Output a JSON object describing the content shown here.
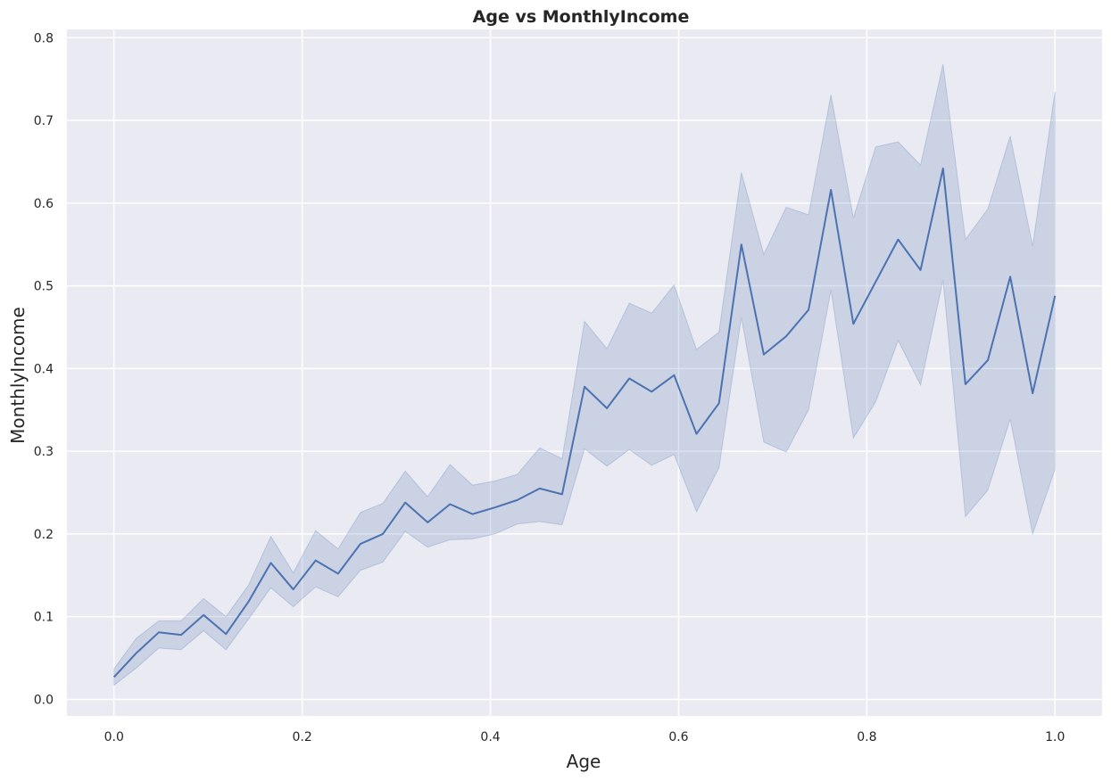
{
  "chart_data": {
    "type": "line",
    "title": "Age vs MonthlyIncome",
    "xlabel": "Age",
    "ylabel": "MonthlyIncome",
    "xlim": [
      -0.05,
      1.05
    ],
    "ylim": [
      -0.02,
      0.81
    ],
    "xticks": [
      "0.0",
      "0.2",
      "0.4",
      "0.6",
      "0.8",
      "1.0"
    ],
    "yticks": [
      "0.0",
      "0.1",
      "0.2",
      "0.3",
      "0.4",
      "0.5",
      "0.6",
      "0.7",
      "0.8"
    ],
    "grid": true,
    "colors": {
      "background": "#eaeaf2",
      "line": "#4c72b0",
      "band": "#4c72b0"
    },
    "series": [
      {
        "x": [
          0.0,
          0.0238,
          0.0476,
          0.0714,
          0.0952,
          0.119,
          0.1429,
          0.1667,
          0.1905,
          0.2143,
          0.2381,
          0.2619,
          0.2857,
          0.3095,
          0.3333,
          0.3571,
          0.381,
          0.4048,
          0.4286,
          0.4524,
          0.4762,
          0.5,
          0.5238,
          0.5476,
          0.5714,
          0.5952,
          0.619,
          0.6429,
          0.6667,
          0.6905,
          0.7143,
          0.7381,
          0.7619,
          0.7857,
          0.8095,
          0.8333,
          0.8571,
          0.881,
          0.9048,
          0.9286,
          0.9524,
          0.9762,
          1.0
        ],
        "y": [
          0.027,
          0.056,
          0.081,
          0.078,
          0.102,
          0.079,
          0.118,
          0.165,
          0.133,
          0.168,
          0.152,
          0.188,
          0.2,
          0.238,
          0.214,
          0.236,
          0.224,
          0.232,
          0.241,
          0.255,
          0.248,
          0.378,
          0.352,
          0.388,
          0.372,
          0.392,
          0.321,
          0.358,
          0.55,
          0.417,
          0.439,
          0.471,
          0.616,
          0.454,
          0.505,
          0.556,
          0.519,
          0.642,
          0.381,
          0.41,
          0.511,
          0.37,
          0.488
        ],
        "lower": [
          0.017,
          0.038,
          0.062,
          0.06,
          0.083,
          0.06,
          0.097,
          0.135,
          0.112,
          0.136,
          0.124,
          0.156,
          0.166,
          0.203,
          0.184,
          0.193,
          0.194,
          0.2,
          0.212,
          0.215,
          0.211,
          0.303,
          0.282,
          0.302,
          0.283,
          0.296,
          0.227,
          0.28,
          0.462,
          0.311,
          0.299,
          0.35,
          0.495,
          0.316,
          0.36,
          0.434,
          0.38,
          0.507,
          0.221,
          0.253,
          0.339,
          0.2,
          0.278
        ],
        "upper": [
          0.037,
          0.074,
          0.095,
          0.095,
          0.122,
          0.1,
          0.138,
          0.197,
          0.153,
          0.204,
          0.182,
          0.226,
          0.237,
          0.276,
          0.245,
          0.284,
          0.259,
          0.264,
          0.272,
          0.304,
          0.291,
          0.457,
          0.424,
          0.479,
          0.467,
          0.501,
          0.423,
          0.444,
          0.637,
          0.538,
          0.595,
          0.586,
          0.731,
          0.582,
          0.668,
          0.674,
          0.646,
          0.768,
          0.556,
          0.593,
          0.681,
          0.548,
          0.735
        ]
      }
    ]
  }
}
